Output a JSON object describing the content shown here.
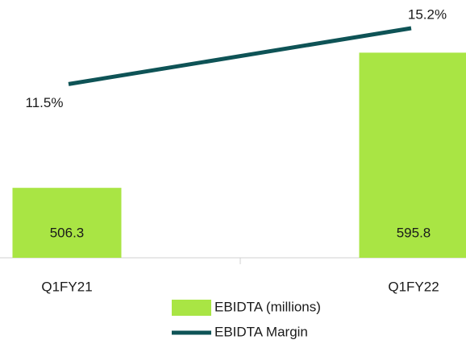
{
  "chart_data": {
    "type": "bar",
    "categories": [
      "Q1FY21",
      "Q1FY22"
    ],
    "series": [
      {
        "name": "EBIDTA (millions)",
        "type": "bar",
        "color": "#a9e544",
        "values": [
          506.3,
          595.8
        ]
      },
      {
        "name": "EBIDTA Margin",
        "type": "line",
        "axis": "y2",
        "color": "#0e5356",
        "values": [
          11.5,
          15.2
        ],
        "value_labels": [
          "11.5%",
          "15.2%"
        ]
      }
    ],
    "ylim": [
      460,
      620
    ],
    "y2lim": [
      0,
      16
    ],
    "legend": "bottom"
  }
}
